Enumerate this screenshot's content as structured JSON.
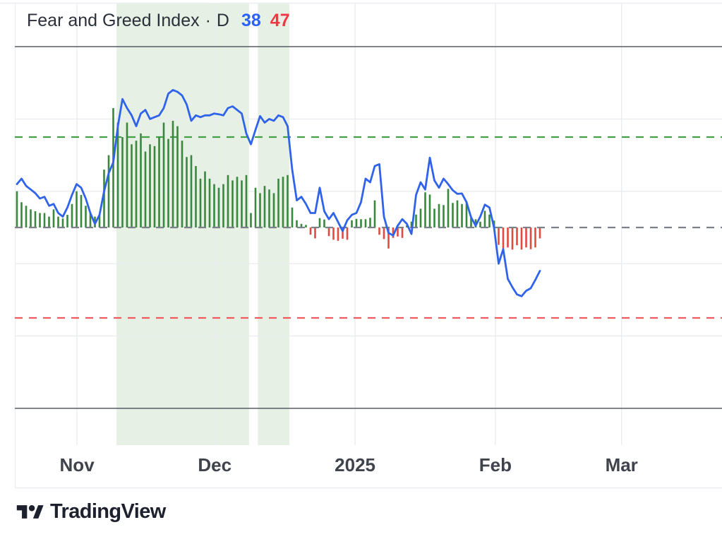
{
  "legend": {
    "title": "Fear and Greed Index",
    "separator": "·",
    "interval": "D",
    "line_value": "38",
    "histogram_value": "47"
  },
  "attribution": {
    "text": "TradingView"
  },
  "colors": {
    "background": "#ffffff",
    "line_blue": "#2f63ea",
    "legend_blue": "#2962ff",
    "legend_red": "#f23645",
    "bar_green": "#3a873e",
    "bar_red": "#e04a40",
    "band_green": "#e7f0e4",
    "grid": "#e9ecf0",
    "border_faint": "#eceef2",
    "border_dark": "#565b64",
    "title_text": "#2c303b",
    "axis_text": "#3f434c",
    "attribution": "#1d212e"
  },
  "chart_data": {
    "type": "line",
    "title": "Fear and Greed Index",
    "interval": "D",
    "ylim": [
      0,
      100
    ],
    "gridlines_y": [
      20,
      40,
      60,
      80
    ],
    "grid": "on",
    "legend_position": "top-left",
    "levels": [
      {
        "name": "top",
        "value": 100,
        "style": "solid",
        "color": "#565b64"
      },
      {
        "name": "extreme-greed",
        "value": 75,
        "style": "dashed",
        "color": "#43a047"
      },
      {
        "name": "neutral",
        "value": 50,
        "style": "dashed",
        "color": "#7c8189"
      },
      {
        "name": "extreme-fear",
        "value": 25,
        "style": "dashed",
        "color": "#f4595f"
      },
      {
        "name": "bottom",
        "value": 0,
        "style": "solid",
        "color": "#565b64"
      }
    ],
    "x_axis": {
      "unit": "day_index",
      "ticks": [
        {
          "label": "Nov",
          "day": 13.1
        },
        {
          "label": "Dec",
          "day": 43.1
        },
        {
          "label": "2025",
          "day": 73.7
        },
        {
          "label": "Feb",
          "day": 104.3
        },
        {
          "label": "Mar",
          "day": 131.8
        }
      ],
      "domain_days": [
        0,
        153.7
      ]
    },
    "bands": [
      {
        "name": "extreme-greed-period",
        "from_day": 21.7,
        "to_day": 50.6
      },
      {
        "name": "extreme-greed-period",
        "from_day": 52.5,
        "to_day": 59.4
      }
    ],
    "series": [
      {
        "name": "Fear and Greed Index",
        "type": "line",
        "color": "#2f63ea",
        "current_value": 38,
        "values": [
          62,
          63.5,
          61.5,
          60.5,
          59.5,
          58,
          58.5,
          56,
          56.5,
          54,
          53,
          55.5,
          59,
          62,
          61,
          58,
          54,
          51,
          53.5,
          60,
          65,
          68,
          78,
          85.5,
          83,
          81,
          78,
          81.5,
          82.5,
          80,
          80.5,
          81,
          83,
          87,
          88,
          87.5,
          86.5,
          84,
          79.5,
          81,
          80.5,
          81,
          81,
          81.5,
          81.3,
          81,
          83,
          83.5,
          82.5,
          81.5,
          76,
          73,
          77,
          80.8,
          79,
          80,
          79.5,
          81,
          80.5,
          78,
          66,
          57.5,
          58.5,
          56.5,
          54,
          54,
          61,
          54.5,
          52.3,
          54,
          51.5,
          49,
          52,
          53.5,
          54,
          57,
          63.5,
          62.5,
          67,
          67.5,
          53,
          48.5,
          47.8,
          50.5,
          52.3,
          51,
          48.2,
          59,
          62.5,
          60.5,
          69.3,
          63,
          61,
          63.5,
          62,
          60.3,
          59.3,
          59.4,
          57,
          52.8,
          50.5,
          53,
          56.3,
          55.5,
          50,
          40,
          44,
          35.8,
          33.5,
          31.5,
          31,
          32.5,
          33.2,
          35.5,
          38
        ]
      },
      {
        "name": "Histogram",
        "type": "bar",
        "baseline": 50,
        "color_above": "#3a873e",
        "color_below": "#e04a40",
        "current_value": 47,
        "values": [
          60,
          57,
          56,
          55,
          54.5,
          54,
          54,
          53,
          55,
          53,
          52.5,
          53.5,
          56.5,
          60,
          59,
          56,
          54,
          53,
          53.5,
          66,
          70,
          83,
          79,
          75,
          79,
          73,
          74,
          76,
          71,
          73,
          72.5,
          75,
          79,
          74.5,
          79.5,
          78,
          74,
          69.5,
          70,
          67,
          63.5,
          65.5,
          63.5,
          62,
          61,
          62,
          64.5,
          63,
          64,
          63,
          64.5,
          54,
          61,
          59.5,
          61.5,
          60.5,
          59.5,
          63.5,
          64,
          64.5,
          55.5,
          52,
          51,
          50.7,
          48,
          47,
          52.6,
          52.2,
          47.6,
          46.6,
          46.3,
          46.9,
          46.6,
          52,
          52.4,
          52.3,
          52.3,
          52.7,
          57.5,
          48,
          46.8,
          44.2,
          47.1,
          47.5,
          47.1,
          50.6,
          51.6,
          53.6,
          55.2,
          59.7,
          59.1,
          55.2,
          56.5,
          56.2,
          60.7,
          56.8,
          57.5,
          56.5,
          57.3,
          52.7,
          52.3,
          51.6,
          54.6,
          53.6,
          51.9,
          45.2,
          44.2,
          44.5,
          43.9,
          45.1,
          43.9,
          44.5,
          44,
          44.5,
          47
        ]
      }
    ]
  }
}
